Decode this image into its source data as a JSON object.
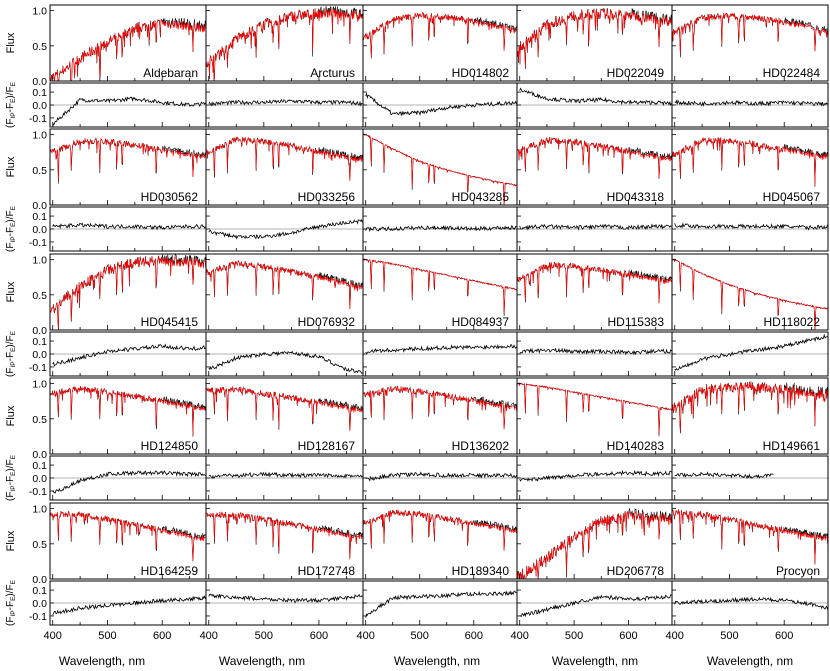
{
  "colors": {
    "observed": "#000000",
    "model": "#ff0000",
    "residual": "#000000",
    "zero_line": "#9a9a9a",
    "frame": "#000000"
  },
  "chart_data": {
    "type": "line",
    "layout": "5x5 grid of spectrum panels, each with a residual sub-panel below",
    "x_axis": {
      "label": "Wavelength, nm",
      "range": [
        395,
        680
      ],
      "ticks": [
        400,
        500,
        600
      ]
    },
    "flux_axis": {
      "label": "Flux",
      "range": [
        0,
        1.08
      ],
      "ticks": [
        0.0,
        0.5,
        1.0
      ],
      "tick_labels": [
        "0.0",
        "0.5",
        "1.0"
      ]
    },
    "residual_axis": {
      "label": "(F_IP-F_E)/F_E",
      "label_main": "(F",
      "label_sub1": "IP",
      "label_mid": "-F",
      "label_sub2": "E",
      "label_end": ")/F",
      "label_sub3": "E",
      "range": [
        -0.17,
        0.17
      ],
      "ticks": [
        -0.1,
        0.0,
        0.1
      ],
      "tick_labels": [
        "-0.1",
        "0.0",
        "0.1"
      ]
    },
    "series": [
      {
        "name": "observed",
        "color": "#000000"
      },
      {
        "name": "model",
        "color": "#ff0000"
      }
    ],
    "stars": [
      {
        "name": "Aldebaran",
        "shape": "k",
        "x": [
          400,
          450,
          500,
          550,
          600,
          650,
          680
        ],
        "flux": [
          0.05,
          0.32,
          0.55,
          0.75,
          0.82,
          0.78,
          0.75
        ],
        "residual_x": [
          400,
          450,
          500,
          550,
          600,
          650,
          680
        ],
        "residual": [
          -0.15,
          0.04,
          0.03,
          0.05,
          0.02,
          0.0,
          0.01
        ]
      },
      {
        "name": "Arcturus",
        "shape": "k",
        "x": [
          400,
          450,
          500,
          550,
          600,
          650,
          680
        ],
        "flux": [
          0.28,
          0.6,
          0.8,
          0.92,
          0.96,
          0.95,
          0.92
        ],
        "residual_x": [
          400,
          450,
          500,
          550,
          600,
          650,
          680
        ],
        "residual": [
          0.01,
          0.02,
          0.02,
          0.03,
          0.02,
          0.02,
          0.01
        ]
      },
      {
        "name": "HD014802",
        "shape": "g",
        "x": [
          400,
          450,
          500,
          550,
          600,
          650,
          680
        ],
        "flux": [
          0.62,
          0.88,
          0.93,
          0.91,
          0.85,
          0.77,
          0.7
        ],
        "residual_x": [
          400,
          450,
          500,
          550,
          600,
          650,
          680
        ],
        "residual": [
          0.08,
          -0.07,
          -0.06,
          -0.02,
          0.0,
          0.01,
          0.02
        ]
      },
      {
        "name": "HD022049",
        "shape": "k",
        "x": [
          400,
          450,
          500,
          550,
          600,
          650,
          680
        ],
        "flux": [
          0.48,
          0.8,
          0.93,
          0.96,
          0.93,
          0.88,
          0.84
        ],
        "residual_x": [
          400,
          450,
          500,
          550,
          600,
          650,
          680
        ],
        "residual": [
          0.12,
          0.05,
          0.03,
          0.04,
          0.02,
          0.02,
          0.01
        ]
      },
      {
        "name": "HD022484",
        "shape": "g",
        "x": [
          400,
          450,
          500,
          550,
          600,
          650,
          680
        ],
        "flux": [
          0.7,
          0.9,
          0.93,
          0.9,
          0.84,
          0.76,
          0.7
        ],
        "residual_x": [
          400,
          450,
          500,
          550,
          600,
          650,
          680
        ],
        "residual": [
          0.02,
          0.01,
          0.02,
          0.01,
          0.02,
          0.01,
          0.01
        ]
      },
      {
        "name": "HD030562",
        "shape": "g",
        "x": [
          400,
          450,
          500,
          550,
          600,
          650,
          680
        ],
        "flux": [
          0.75,
          0.91,
          0.9,
          0.85,
          0.78,
          0.72,
          0.68
        ],
        "residual_x": [
          400,
          450,
          500,
          550,
          600,
          650,
          680
        ],
        "residual": [
          0.02,
          0.03,
          0.02,
          0.02,
          0.01,
          0.02,
          0.02
        ]
      },
      {
        "name": "HD033256",
        "shape": "g",
        "x": [
          400,
          450,
          500,
          550,
          600,
          650,
          680
        ],
        "flux": [
          0.75,
          0.93,
          0.9,
          0.84,
          0.76,
          0.68,
          0.64
        ],
        "residual_x": [
          400,
          450,
          500,
          550,
          600,
          650,
          680
        ],
        "residual": [
          -0.02,
          -0.06,
          -0.06,
          -0.03,
          0.02,
          0.05,
          0.06
        ]
      },
      {
        "name": "HD043285",
        "shape": "b",
        "x": [
          400,
          450,
          500,
          550,
          600,
          650,
          680
        ],
        "flux": [
          1.0,
          0.8,
          0.62,
          0.5,
          0.4,
          0.32,
          0.28
        ],
        "residual_x": [
          400,
          450,
          500,
          550,
          600,
          650,
          680
        ],
        "residual": [
          0.0,
          0.0,
          0.01,
          0.01,
          0.0,
          0.01,
          0.01
        ]
      },
      {
        "name": "HD043318",
        "shape": "g",
        "x": [
          400,
          450,
          500,
          550,
          600,
          650,
          680
        ],
        "flux": [
          0.78,
          0.92,
          0.9,
          0.84,
          0.76,
          0.69,
          0.65
        ],
        "residual_x": [
          400,
          450,
          500,
          550,
          600,
          650,
          680
        ],
        "residual": [
          0.01,
          0.02,
          0.01,
          0.02,
          0.01,
          0.02,
          0.02
        ]
      },
      {
        "name": "HD045067",
        "shape": "g",
        "x": [
          400,
          450,
          500,
          550,
          600,
          650,
          680
        ],
        "flux": [
          0.72,
          0.92,
          0.91,
          0.86,
          0.79,
          0.72,
          0.68
        ],
        "residual_x": [
          400,
          450,
          500,
          550,
          600,
          650,
          680
        ],
        "residual": [
          0.03,
          0.02,
          0.02,
          0.02,
          0.02,
          0.01,
          0.02
        ]
      },
      {
        "name": "HD045415",
        "shape": "k",
        "x": [
          400,
          450,
          500,
          550,
          600,
          650,
          680
        ],
        "flux": [
          0.3,
          0.62,
          0.85,
          0.96,
          0.98,
          0.96,
          0.94
        ],
        "residual_x": [
          400,
          450,
          500,
          550,
          600,
          650,
          680
        ],
        "residual": [
          -0.08,
          -0.03,
          0.02,
          0.04,
          0.06,
          0.04,
          0.05
        ]
      },
      {
        "name": "HD076932",
        "shape": "g",
        "x": [
          400,
          450,
          500,
          550,
          600,
          650,
          680
        ],
        "flux": [
          0.82,
          0.95,
          0.9,
          0.83,
          0.75,
          0.66,
          0.6
        ],
        "residual_x": [
          400,
          450,
          500,
          550,
          600,
          650,
          680
        ],
        "residual": [
          -0.12,
          -0.03,
          0.0,
          0.01,
          -0.02,
          -0.12,
          -0.14
        ]
      },
      {
        "name": "HD084937",
        "shape": "b",
        "x": [
          400,
          450,
          500,
          550,
          600,
          650,
          680
        ],
        "flux": [
          1.0,
          0.94,
          0.86,
          0.78,
          0.7,
          0.62,
          0.58
        ],
        "residual_x": [
          400,
          450,
          500,
          550,
          600,
          650,
          680
        ],
        "residual": [
          0.02,
          0.03,
          0.04,
          0.05,
          0.05,
          0.06,
          0.06
        ]
      },
      {
        "name": "HD115383",
        "shape": "g",
        "x": [
          400,
          450,
          500,
          550,
          600,
          650,
          680
        ],
        "flux": [
          0.72,
          0.92,
          0.91,
          0.86,
          0.79,
          0.72,
          0.68
        ],
        "residual_x": [
          400,
          450,
          500,
          550,
          600,
          650,
          680
        ],
        "residual": [
          0.02,
          0.03,
          0.02,
          0.02,
          0.01,
          0.02,
          0.02
        ]
      },
      {
        "name": "HD118022",
        "shape": "b",
        "x": [
          400,
          450,
          500,
          550,
          600,
          650,
          680
        ],
        "flux": [
          1.0,
          0.8,
          0.64,
          0.52,
          0.42,
          0.34,
          0.3
        ],
        "residual_x": [
          400,
          450,
          500,
          550,
          600,
          650,
          680
        ],
        "residual": [
          -0.12,
          -0.04,
          0.0,
          0.03,
          0.06,
          0.11,
          0.14
        ]
      },
      {
        "name": "HD124850",
        "shape": "g",
        "x": [
          400,
          450,
          500,
          550,
          600,
          650,
          680
        ],
        "flux": [
          0.86,
          0.93,
          0.88,
          0.82,
          0.75,
          0.68,
          0.64
        ],
        "residual_x": [
          400,
          450,
          500,
          550,
          600,
          650,
          680
        ],
        "residual": [
          -0.12,
          -0.02,
          0.03,
          0.04,
          0.04,
          0.03,
          0.03
        ]
      },
      {
        "name": "HD128167",
        "shape": "g",
        "x": [
          400,
          450,
          500,
          550,
          600,
          650,
          680
        ],
        "flux": [
          0.9,
          0.92,
          0.86,
          0.8,
          0.73,
          0.66,
          0.62
        ],
        "residual_x": [
          400,
          450,
          500,
          550,
          600,
          650,
          680
        ],
        "residual": [
          0.01,
          0.02,
          0.03,
          0.02,
          0.02,
          0.02,
          0.01
        ]
      },
      {
        "name": "HD136202",
        "shape": "g",
        "x": [
          400,
          450,
          500,
          550,
          600,
          650,
          680
        ],
        "flux": [
          0.84,
          0.93,
          0.89,
          0.83,
          0.76,
          0.69,
          0.65
        ],
        "residual_x": [
          400,
          450,
          500,
          550,
          600,
          650,
          680
        ],
        "residual": [
          -0.01,
          0.02,
          0.03,
          0.02,
          0.02,
          0.02,
          0.02
        ]
      },
      {
        "name": "HD140283",
        "shape": "b",
        "x": [
          400,
          450,
          500,
          550,
          600,
          650,
          680
        ],
        "flux": [
          1.0,
          0.95,
          0.88,
          0.81,
          0.74,
          0.67,
          0.63
        ],
        "residual_x": [
          400,
          450,
          500,
          550,
          600,
          650,
          680
        ],
        "residual": [
          -0.02,
          0.0,
          0.02,
          0.03,
          0.04,
          0.03,
          0.04
        ]
      },
      {
        "name": "HD149661",
        "shape": "k",
        "x": [
          400,
          450,
          500,
          550,
          600,
          650,
          680
        ],
        "flux": [
          0.65,
          0.92,
          0.96,
          0.95,
          0.92,
          0.87,
          0.84
        ],
        "residual_x": [
          400,
          450,
          500,
          550,
          580
        ],
        "residual": [
          0.02,
          0.03,
          0.02,
          0.01,
          0.03
        ]
      },
      {
        "name": "HD164259",
        "shape": "g",
        "x": [
          400,
          450,
          500,
          550,
          600,
          650,
          680
        ],
        "flux": [
          0.92,
          0.91,
          0.85,
          0.77,
          0.69,
          0.61,
          0.57
        ],
        "residual_x": [
          400,
          450,
          500,
          550,
          600,
          650,
          680
        ],
        "residual": [
          -0.08,
          -0.04,
          -0.02,
          0.0,
          0.02,
          0.03,
          0.04
        ]
      },
      {
        "name": "HD172748",
        "shape": "g",
        "x": [
          400,
          450,
          500,
          550,
          600,
          650,
          680
        ],
        "flux": [
          0.92,
          0.91,
          0.85,
          0.78,
          0.7,
          0.63,
          0.59
        ],
        "residual_x": [
          400,
          450,
          500,
          550,
          600,
          650,
          680
        ],
        "residual": [
          0.06,
          0.04,
          0.03,
          0.02,
          0.02,
          0.04,
          0.06
        ]
      },
      {
        "name": "HD189340",
        "shape": "g",
        "x": [
          400,
          450,
          500,
          550,
          600,
          650,
          680
        ],
        "flux": [
          0.8,
          0.95,
          0.92,
          0.86,
          0.79,
          0.72,
          0.68
        ],
        "residual_x": [
          400,
          450,
          500,
          550,
          600,
          650,
          680
        ],
        "residual": [
          -0.1,
          0.04,
          0.05,
          0.06,
          0.07,
          0.07,
          0.08
        ]
      },
      {
        "name": "HD206778",
        "shape": "k",
        "x": [
          400,
          450,
          500,
          550,
          600,
          650,
          680
        ],
        "flux": [
          0.05,
          0.3,
          0.6,
          0.82,
          0.9,
          0.88,
          0.85
        ],
        "residual_x": [
          400,
          450,
          500,
          550,
          600,
          650,
          680
        ],
        "residual": [
          -0.1,
          -0.05,
          0.0,
          0.05,
          0.03,
          0.04,
          0.05
        ]
      },
      {
        "name": "Procyon",
        "shape": "g",
        "x": [
          400,
          450,
          500,
          550,
          600,
          650,
          680
        ],
        "flux": [
          0.95,
          0.92,
          0.85,
          0.77,
          0.69,
          0.61,
          0.57
        ],
        "residual_x": [
          400,
          450,
          500,
          550,
          600,
          650,
          680
        ],
        "residual": [
          0.0,
          0.01,
          0.02,
          0.03,
          0.02,
          -0.01,
          -0.04
        ]
      }
    ]
  }
}
